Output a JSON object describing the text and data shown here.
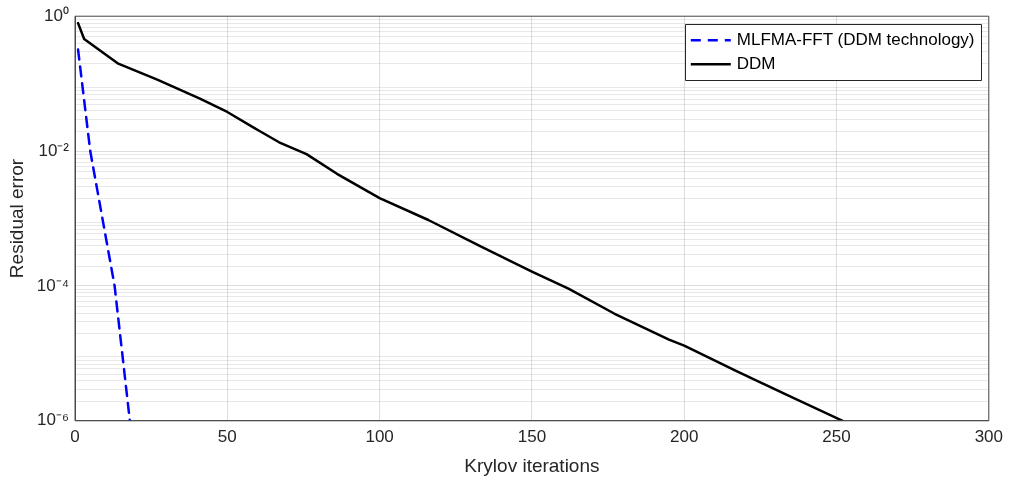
{
  "chart_data": {
    "type": "line",
    "xlabel": "Krylov iterations",
    "ylabel": "Residual error",
    "xlim": [
      0,
      300
    ],
    "xticks": [
      0,
      50,
      100,
      150,
      200,
      250,
      300
    ],
    "ylim": [
      1e-06,
      1
    ],
    "yticks": [
      {
        "value": 1e-06,
        "label": "10⁻⁶"
      },
      {
        "value": 0.0001,
        "label": "10⁻⁴"
      },
      {
        "value": 0.01,
        "label": "10⁻²"
      },
      {
        "value": 1,
        "label": "10⁰"
      }
    ],
    "log": "y",
    "grid": true,
    "legend": "top right",
    "marker": "none",
    "series": [
      {
        "name": "MLFMA-FFT (DDM technology)",
        "color": "#0000ff",
        "line_style": "dashed",
        "x": [
          1,
          5,
          13,
          18
        ],
        "values": [
          0.32,
          0.01,
          0.0001,
          1e-06
        ]
      },
      {
        "name": "DDM",
        "color": "#000000",
        "line_style": "solid",
        "x": [
          1,
          3,
          14,
          27,
          41,
          50,
          60,
          67,
          76,
          86,
          100,
          116,
          133,
          150,
          162,
          177,
          195,
          200,
          217,
          233,
          252
        ],
        "values": [
          0.79,
          0.46,
          0.2,
          0.115,
          0.06,
          0.038,
          0.0205,
          0.0135,
          0.009,
          0.0046,
          0.002,
          0.00095,
          0.00039,
          0.000163,
          9.1e-05,
          3.9e-05,
          1.6e-05,
          1.3e-05,
          5.5e-06,
          2.5e-06,
          1e-06
        ]
      }
    ]
  }
}
